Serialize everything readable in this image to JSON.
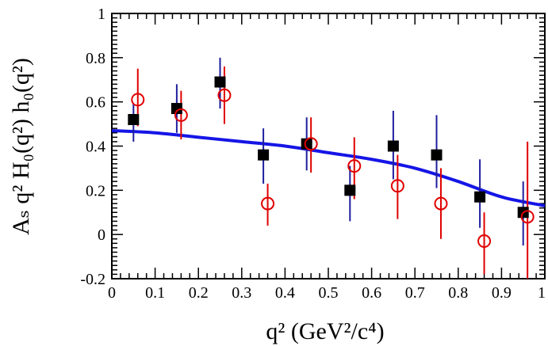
{
  "chart_data": {
    "type": "scatter",
    "title": "",
    "xlabel": "q² (GeV²/c⁴)",
    "ylabel": "Aₛ q² H₀(q²) h₀(q²)",
    "xlim": [
      0,
      1
    ],
    "ylim": [
      -0.2,
      1
    ],
    "xticks": [
      "0",
      "0.1",
      "0.2",
      "0.3",
      "0.4",
      "0.5",
      "0.6",
      "0.7",
      "0.8",
      "0.9",
      "1"
    ],
    "yticks": [
      "-0.2",
      "0",
      "0.2",
      "0.4",
      "0.6",
      "0.8",
      "1"
    ],
    "grid": false,
    "series": [
      {
        "marker": "filled-square",
        "color": "#000000",
        "error_color": "#1f1f9e",
        "x": [
          0.05,
          0.15,
          0.25,
          0.35,
          0.45,
          0.55,
          0.65,
          0.75,
          0.85,
          0.95
        ],
        "y": [
          0.52,
          0.57,
          0.69,
          0.36,
          0.41,
          0.2,
          0.4,
          0.36,
          0.17,
          0.1
        ],
        "yerr_low": [
          0.42,
          0.46,
          0.57,
          0.23,
          0.29,
          0.06,
          0.25,
          0.21,
          0.03,
          -0.05
        ],
        "yerr_high": [
          0.59,
          0.68,
          0.8,
          0.48,
          0.53,
          0.31,
          0.56,
          0.54,
          0.34,
          0.24
        ]
      },
      {
        "marker": "open-circle",
        "color": "#e00000",
        "error_color": "#e00000",
        "x": [
          0.06,
          0.16,
          0.26,
          0.36,
          0.46,
          0.56,
          0.66,
          0.76,
          0.86,
          0.96
        ],
        "y": [
          0.61,
          0.54,
          0.63,
          0.14,
          0.41,
          0.31,
          0.22,
          0.14,
          -0.03,
          0.08
        ],
        "yerr_low": [
          0.49,
          0.43,
          0.5,
          0.04,
          0.28,
          0.16,
          0.07,
          -0.02,
          -0.18,
          -0.2
        ],
        "yerr_high": [
          0.75,
          0.65,
          0.76,
          0.23,
          0.53,
          0.44,
          0.36,
          0.3,
          0.1,
          0.42
        ]
      },
      {
        "type": "line",
        "color": "#1515e6",
        "x": [
          0.0,
          0.1,
          0.2,
          0.3,
          0.4,
          0.5,
          0.6,
          0.7,
          0.8,
          0.9,
          1.0
        ],
        "y": [
          0.47,
          0.46,
          0.44,
          0.42,
          0.4,
          0.37,
          0.34,
          0.3,
          0.24,
          0.17,
          0.13
        ]
      }
    ]
  }
}
